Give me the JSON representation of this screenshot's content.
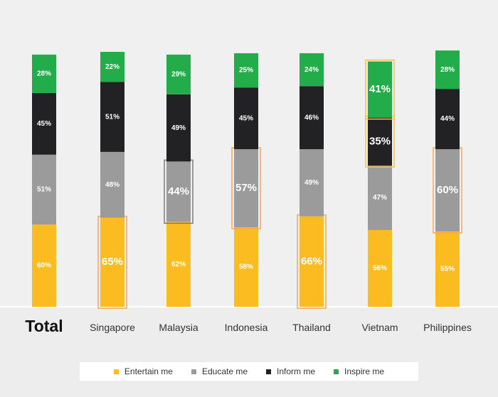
{
  "chart_data": {
    "type": "stacked-bar",
    "categories": [
      "Total",
      "Singapore",
      "Malaysia",
      "Indonesia",
      "Thailand",
      "Vietnam",
      "Philippines"
    ],
    "series": [
      {
        "name": "Entertain me",
        "color": "#fbbc22",
        "values": [
          60,
          65,
          62,
          58,
          66,
          56,
          55
        ]
      },
      {
        "name": "Educate me",
        "color": "#9b9b9b",
        "values": [
          51,
          48,
          44,
          57,
          49,
          47,
          60
        ]
      },
      {
        "name": "Inform me",
        "color": "#222224",
        "values": [
          45,
          51,
          49,
          45,
          46,
          35,
          44
        ]
      },
      {
        "name": "Inspire me",
        "color": "#22ac4a",
        "values": [
          28,
          22,
          29,
          25,
          24,
          41,
          28
        ]
      }
    ],
    "value_suffix": "%",
    "highlighted": [
      {
        "category": "Singapore",
        "series": "Entertain me",
        "color": "#f5a65a"
      },
      {
        "category": "Malaysia",
        "series": "Educate me",
        "color": "#7a7a7a"
      },
      {
        "category": "Indonesia",
        "series": "Educate me",
        "color": "#f5a65a"
      },
      {
        "category": "Thailand",
        "series": "Entertain me",
        "color": "#f5a65a"
      },
      {
        "category": "Vietnam",
        "series": "Inform me",
        "color": "#f3c24d"
      },
      {
        "category": "Vietnam",
        "series": "Inspire me",
        "color": "#f3c24d"
      },
      {
        "category": "Philippines",
        "series": "Educate me",
        "color": "#f5a65a"
      }
    ],
    "legend_position": "bottom"
  }
}
